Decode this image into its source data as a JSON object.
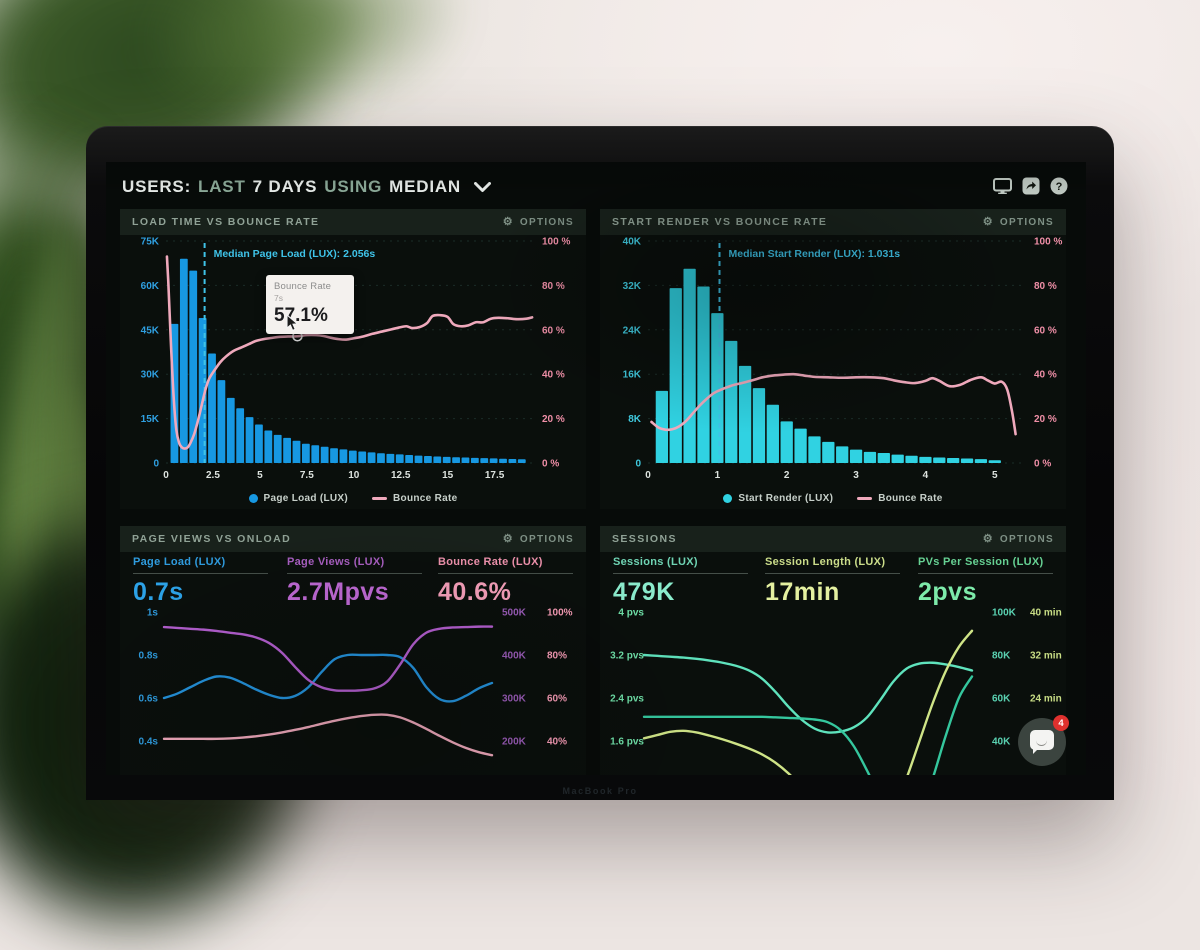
{
  "window": {
    "brand_text": "MacBook Pro"
  },
  "header": {
    "segments": [
      {
        "text": "USERS:",
        "tone": "bright"
      },
      {
        "text": "LAST",
        "tone": "muted"
      },
      {
        "text": "7 DAYS",
        "tone": "bright"
      },
      {
        "text": "USING",
        "tone": "muted"
      },
      {
        "text": "MEDIAN",
        "tone": "bright"
      }
    ],
    "icons": {
      "help_glyph": "?"
    }
  },
  "options_label": "OPTIONS",
  "chat": {
    "badge": "4"
  },
  "chart_data": [
    {
      "panel": "load-time-vs-bounce-rate",
      "title": "LOAD TIME VS BOUNCE RATE",
      "type": "bar+line",
      "x": {
        "ticks": [
          "0",
          "2.5",
          "5",
          "7.5",
          "10",
          "12.5",
          "15",
          "17.5"
        ],
        "tick_values": [
          0,
          2.5,
          5,
          7.5,
          10,
          12.5,
          15,
          17.5
        ],
        "range": [
          0,
          19.6
        ],
        "unit": "seconds"
      },
      "y_left": {
        "ticks": [
          "75K",
          "60K",
          "45K",
          "30K",
          "15K",
          "0"
        ],
        "range": [
          0,
          75000
        ],
        "color": "#2f9fe0"
      },
      "y_right": {
        "ticks": [
          "100 %",
          "80 %",
          "60 %",
          "40 %",
          "20 %",
          "0 %"
        ],
        "range": [
          0,
          100
        ],
        "color": "#ef8fa7"
      },
      "bars": {
        "name": "Page Load (LUX)",
        "color": "#1798e2",
        "bin_start": 0.2,
        "bin_width": 0.5,
        "values": [
          47000,
          69000,
          65000,
          49000,
          37000,
          28000,
          22000,
          18500,
          15500,
          13000,
          11000,
          9500,
          8500,
          7500,
          6500,
          6000,
          5500,
          5000,
          4600,
          4200,
          3900,
          3600,
          3300,
          3100,
          2900,
          2700,
          2500,
          2350,
          2200,
          2050,
          1950,
          1850,
          1750,
          1650,
          1550,
          1450,
          1350,
          1250
        ]
      },
      "line": {
        "name": "Bounce Rate",
        "color": "#efa9bc",
        "points": [
          [
            0.05,
            93
          ],
          [
            0.12,
            82
          ],
          [
            0.2,
            66
          ],
          [
            0.3,
            47
          ],
          [
            0.42,
            28
          ],
          [
            0.55,
            15
          ],
          [
            0.7,
            9
          ],
          [
            0.85,
            7
          ],
          [
            1.0,
            6.5
          ],
          [
            1.15,
            7
          ],
          [
            1.3,
            9
          ],
          [
            1.5,
            13
          ],
          [
            1.7,
            19
          ],
          [
            1.9,
            26
          ],
          [
            2.1,
            33
          ],
          [
            2.3,
            38
          ],
          [
            2.6,
            42
          ],
          [
            2.9,
            45.5
          ],
          [
            3.2,
            48
          ],
          [
            3.6,
            50.5
          ],
          [
            4.0,
            52
          ],
          [
            4.4,
            53.5
          ],
          [
            4.8,
            55
          ],
          [
            5.2,
            55.8
          ],
          [
            5.6,
            56.3
          ],
          [
            6.0,
            56.8
          ],
          [
            6.5,
            57
          ],
          [
            7.0,
            57.1
          ],
          [
            7.5,
            57.6
          ],
          [
            8.0,
            57.6
          ],
          [
            8.4,
            57.2
          ],
          [
            8.8,
            56.4
          ],
          [
            9.2,
            55.8
          ],
          [
            9.6,
            55.6
          ],
          [
            10.0,
            56.2
          ],
          [
            10.5,
            57
          ],
          [
            11.0,
            58.2
          ],
          [
            11.5,
            59.2
          ],
          [
            12.0,
            60.2
          ],
          [
            12.4,
            61
          ],
          [
            12.8,
            61.6
          ],
          [
            13.1,
            60.8
          ],
          [
            13.5,
            61.2
          ],
          [
            13.9,
            63
          ],
          [
            14.2,
            66.2
          ],
          [
            14.6,
            66.6
          ],
          [
            15.0,
            65.8
          ],
          [
            15.3,
            62.6
          ],
          [
            15.7,
            61.6
          ],
          [
            16.1,
            62
          ],
          [
            16.5,
            63.4
          ],
          [
            16.9,
            63.4
          ],
          [
            17.3,
            65
          ],
          [
            17.7,
            65.4
          ],
          [
            18.2,
            65.2
          ],
          [
            18.7,
            64.8
          ],
          [
            19.2,
            65
          ],
          [
            19.5,
            65.6
          ]
        ]
      },
      "median": {
        "label": "Median Page Load (LUX): 2.056s",
        "value": 2.056,
        "color": "#3fc3e8"
      },
      "tooltip": {
        "title": "Bounce Rate",
        "subtitle": "7s",
        "value": "57.1%",
        "point": [
          7,
          57.1
        ]
      },
      "legend": [
        {
          "label": "Page Load (LUX)",
          "marker": "dot",
          "color": "#1798e2"
        },
        {
          "label": "Bounce Rate",
          "marker": "line",
          "color": "#efa9bc"
        }
      ]
    },
    {
      "panel": "start-render-vs-bounce-rate",
      "title": "START RENDER VS BOUNCE RATE",
      "type": "bar+line",
      "x": {
        "ticks": [
          "0",
          "1",
          "2",
          "3",
          "4",
          "5"
        ],
        "tick_values": [
          0,
          1,
          2,
          3,
          4,
          5
        ],
        "range": [
          0,
          5.45
        ],
        "unit": "seconds"
      },
      "y_left": {
        "ticks": [
          "40K",
          "32K",
          "24K",
          "16K",
          "8K",
          "0"
        ],
        "range": [
          0,
          40000
        ],
        "color": "#3fc9de"
      },
      "y_right": {
        "ticks": [
          "100 %",
          "80 %",
          "60 %",
          "40 %",
          "20 %",
          "0 %"
        ],
        "range": [
          0,
          100
        ],
        "color": "#ef8fa7"
      },
      "bars": {
        "name": "Start Render (LUX)",
        "color": "#30d2e2",
        "bin_start": 0.1,
        "bin_width": 0.2,
        "values": [
          13000,
          31500,
          35000,
          31800,
          27000,
          22000,
          17500,
          13500,
          10500,
          7500,
          6200,
          4800,
          3800,
          3000,
          2400,
          2000,
          1800,
          1500,
          1300,
          1100,
          1000,
          900,
          800,
          700,
          500
        ]
      },
      "line": {
        "name": "Bounce Rate",
        "color": "#efa9bc",
        "points": [
          [
            0.05,
            18.5
          ],
          [
            0.15,
            16
          ],
          [
            0.25,
            15
          ],
          [
            0.35,
            15.2
          ],
          [
            0.45,
            16.5
          ],
          [
            0.55,
            19
          ],
          [
            0.65,
            22.5
          ],
          [
            0.75,
            26
          ],
          [
            0.85,
            29
          ],
          [
            0.95,
            31.5
          ],
          [
            1.05,
            33
          ],
          [
            1.2,
            34.8
          ],
          [
            1.35,
            36
          ],
          [
            1.5,
            37.2
          ],
          [
            1.65,
            38.6
          ],
          [
            1.8,
            39.4
          ],
          [
            1.95,
            39.8
          ],
          [
            2.1,
            40
          ],
          [
            2.25,
            39.4
          ],
          [
            2.4,
            38.8
          ],
          [
            2.6,
            38.6
          ],
          [
            2.8,
            38.4
          ],
          [
            3.0,
            38.6
          ],
          [
            3.2,
            38.6
          ],
          [
            3.4,
            38.2
          ],
          [
            3.55,
            37.2
          ],
          [
            3.7,
            36.4
          ],
          [
            3.85,
            36
          ],
          [
            4.0,
            37
          ],
          [
            4.1,
            38.2
          ],
          [
            4.2,
            37
          ],
          [
            4.35,
            34.6
          ],
          [
            4.5,
            35.2
          ],
          [
            4.65,
            37.4
          ],
          [
            4.8,
            38.6
          ],
          [
            4.9,
            37.2
          ],
          [
            5.0,
            35.8
          ],
          [
            5.1,
            36.6
          ],
          [
            5.18,
            33
          ],
          [
            5.25,
            23
          ],
          [
            5.3,
            13
          ]
        ]
      },
      "median": {
        "label": "Median Start Render (LUX): 1.031s",
        "value": 1.031,
        "color": "#3fc3e8"
      },
      "legend": [
        {
          "label": "Start Render (LUX)",
          "marker": "dot",
          "color": "#30d2e2"
        },
        {
          "label": "Bounce Rate",
          "marker": "line",
          "color": "#efa9bc"
        }
      ]
    },
    {
      "panel": "page-views-vs-onload",
      "title": "PAGE VIEWS VS ONLOAD",
      "type": "line",
      "metrics": [
        {
          "label": "Page Load (LUX)",
          "value": "0.7s",
          "color": "#2f9cdf",
          "value_color": "#2da4ea"
        },
        {
          "label": "Page Views (LUX)",
          "value": "2.7Mpvs",
          "color": "#a95fc2",
          "value_color": "#c06ad6"
        },
        {
          "label": "Bounce Rate (LUX)",
          "value": "40.6%",
          "color": "#ef92ad",
          "value_color": "#f7a0bb"
        }
      ],
      "axes": {
        "left": {
          "ticks": [
            "1s",
            "0.8s",
            "0.6s",
            "0.4s"
          ],
          "values": [
            1,
            0.8,
            0.6,
            0.4
          ],
          "color": "#2f9cdf"
        },
        "right1": {
          "ticks": [
            "500K",
            "400K",
            "300K",
            "200K"
          ],
          "values": [
            500,
            400,
            300,
            200
          ],
          "color": "#9a5cb8"
        },
        "right2": {
          "ticks": [
            "100%",
            "80%",
            "60%",
            "40%"
          ],
          "values": [
            100,
            80,
            60,
            40
          ],
          "color": "#f79cb6"
        }
      },
      "series": [
        {
          "name": "Page Load (LUX)",
          "axis": "left",
          "color": "#2493dd",
          "values": [
            0.6,
            0.62,
            0.65,
            0.68,
            0.7,
            0.695,
            0.67,
            0.64,
            0.615,
            0.6,
            0.61,
            0.65,
            0.72,
            0.78,
            0.8,
            0.8,
            0.8,
            0.8,
            0.79,
            0.74,
            0.65,
            0.595,
            0.585,
            0.61,
            0.645,
            0.67
          ]
        },
        {
          "name": "Page Views (LUX)",
          "axis": "right1",
          "color": "#b45fd0",
          "values": [
            465,
            463,
            461,
            459,
            456,
            452,
            448,
            441,
            428,
            405,
            372,
            342,
            325,
            318,
            317,
            318,
            322,
            338,
            378,
            425,
            452,
            461,
            464,
            465,
            466,
            466
          ]
        },
        {
          "name": "Bounce Rate (LUX)",
          "axis": "right2",
          "color": "#f0a9bc",
          "values": [
            41,
            41,
            41,
            41,
            41,
            41.2,
            41.6,
            42.2,
            43,
            44,
            45.2,
            46.5,
            48,
            49.4,
            50.6,
            51.6,
            52.2,
            52.2,
            51,
            48.6,
            45.6,
            42.4,
            39.4,
            36.8,
            34.8,
            33.4
          ]
        }
      ]
    },
    {
      "panel": "sessions",
      "title": "SESSIONS",
      "type": "line",
      "metrics": [
        {
          "label": "Sessions (LUX)",
          "value": "479K",
          "color": "#6fd4b4",
          "value_color": "#8beccd"
        },
        {
          "label": "Session Length (LUX)",
          "value": "17min",
          "color": "#cbdd8a",
          "value_color": "#e4f0a0"
        },
        {
          "label": "PVs Per Session (LUX)",
          "value": "2pvs",
          "color": "#66d193",
          "value_color": "#7deaaa"
        }
      ],
      "axes": {
        "left": {
          "ticks": [
            "4 pvs",
            "3.2 pvs",
            "2.4 pvs",
            "1.6 pvs"
          ],
          "values": [
            4,
            3.2,
            2.4,
            1.6
          ],
          "color": "#6fe0a8"
        },
        "right1": {
          "ticks": [
            "100K",
            "80K",
            "60K",
            "40K"
          ],
          "values": [
            100,
            80,
            60,
            40
          ],
          "color": "#5ad2b2"
        },
        "right2": {
          "ticks": [
            "40 min",
            "32 min",
            "24 min"
          ],
          "values": [
            40,
            32,
            24
          ],
          "color": "#c8dd85"
        }
      },
      "series": [
        {
          "name": "Sessions (LUX)",
          "axis": "right1",
          "color": "#5fe3bd",
          "values": [
            80,
            79.6,
            79.2,
            78.8,
            78.2,
            77.4,
            76.4,
            75,
            72.8,
            69,
            63,
            56,
            50,
            45.8,
            44,
            44.4,
            46.4,
            51,
            59,
            67.6,
            73.6,
            76,
            76.4,
            75.6,
            74.4,
            72.8
          ]
        },
        {
          "name": "PVs Per Session (LUX)",
          "axis": "left",
          "color": "#35c79e",
          "values": [
            2.05,
            2.05,
            2.05,
            2.05,
            2.05,
            2.05,
            2.05,
            2.05,
            2.05,
            2.05,
            2.04,
            2.03,
            2.02,
            2.0,
            1.95,
            1.8,
            1.5,
            1.05,
            0.55,
            0.1,
            -0.2,
            0.2,
            0.9,
            1.7,
            2.4,
            2.8
          ]
        },
        {
          "name": "Session Length (LUX)",
          "axis": "right2",
          "color": "#cfe487",
          "values": [
            16.5,
            17.1,
            17.7,
            17.9,
            17.6,
            17,
            16.3,
            15.5,
            14.6,
            13.5,
            12,
            10,
            7.5,
            4.5,
            1.5,
            -1,
            -3,
            -3,
            -1,
            3,
            9,
            16,
            23,
            29,
            33.5,
            36.5
          ]
        }
      ]
    }
  ]
}
